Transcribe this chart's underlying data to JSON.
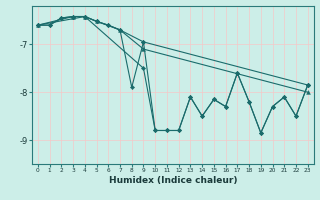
{
  "title": "",
  "xlabel": "Humidex (Indice chaleur)",
  "bg_color": "#cceee8",
  "grid_color": "#f0f0f0",
  "line_color": "#1a6b6b",
  "xlim": [
    -0.5,
    23.5
  ],
  "ylim": [
    -9.5,
    -6.2
  ],
  "yticks": [
    -9,
    -8,
    -7
  ],
  "xticks": [
    0,
    1,
    2,
    3,
    4,
    5,
    6,
    7,
    8,
    9,
    10,
    11,
    12,
    13,
    14,
    15,
    16,
    17,
    18,
    19,
    20,
    21,
    22,
    23
  ],
  "series1": [
    [
      0,
      -6.6
    ],
    [
      1,
      -6.6
    ],
    [
      2,
      -6.45
    ],
    [
      3,
      -6.42
    ],
    [
      4,
      -6.42
    ],
    [
      5,
      -6.52
    ],
    [
      6,
      -6.6
    ],
    [
      7,
      -6.7
    ],
    [
      8,
      -7.9
    ],
    [
      9,
      -6.95
    ],
    [
      10,
      -8.8
    ],
    [
      11,
      -8.8
    ],
    [
      12,
      -8.8
    ],
    [
      13,
      -8.1
    ],
    [
      14,
      -8.5
    ],
    [
      15,
      -8.15
    ],
    [
      16,
      -8.3
    ],
    [
      17,
      -7.6
    ],
    [
      18,
      -8.2
    ],
    [
      19,
      -8.85
    ],
    [
      20,
      -8.3
    ],
    [
      21,
      -8.1
    ],
    [
      22,
      -8.5
    ],
    [
      23,
      -7.85
    ]
  ],
  "series2": [
    [
      0,
      -6.6
    ],
    [
      1,
      -6.6
    ],
    [
      2,
      -6.45
    ],
    [
      3,
      -6.42
    ],
    [
      4,
      -6.42
    ],
    [
      5,
      -6.52
    ],
    [
      6,
      -6.6
    ],
    [
      7,
      -6.7
    ],
    [
      9,
      -6.95
    ],
    [
      23,
      -7.85
    ]
  ],
  "series3": [
    [
      0,
      -6.6
    ],
    [
      3,
      -6.42
    ],
    [
      4,
      -6.42
    ],
    [
      5,
      -6.52
    ],
    [
      7,
      -6.7
    ],
    [
      9,
      -7.1
    ],
    [
      23,
      -8.0
    ]
  ],
  "series4": [
    [
      0,
      -6.6
    ],
    [
      4,
      -6.42
    ],
    [
      9,
      -7.5
    ],
    [
      10,
      -8.8
    ],
    [
      11,
      -8.8
    ],
    [
      12,
      -8.8
    ],
    [
      13,
      -8.1
    ],
    [
      14,
      -8.5
    ],
    [
      15,
      -8.15
    ],
    [
      16,
      -8.3
    ],
    [
      17,
      -7.6
    ],
    [
      18,
      -8.2
    ],
    [
      19,
      -8.85
    ],
    [
      20,
      -8.3
    ],
    [
      21,
      -8.1
    ],
    [
      22,
      -8.5
    ],
    [
      23,
      -7.85
    ]
  ]
}
